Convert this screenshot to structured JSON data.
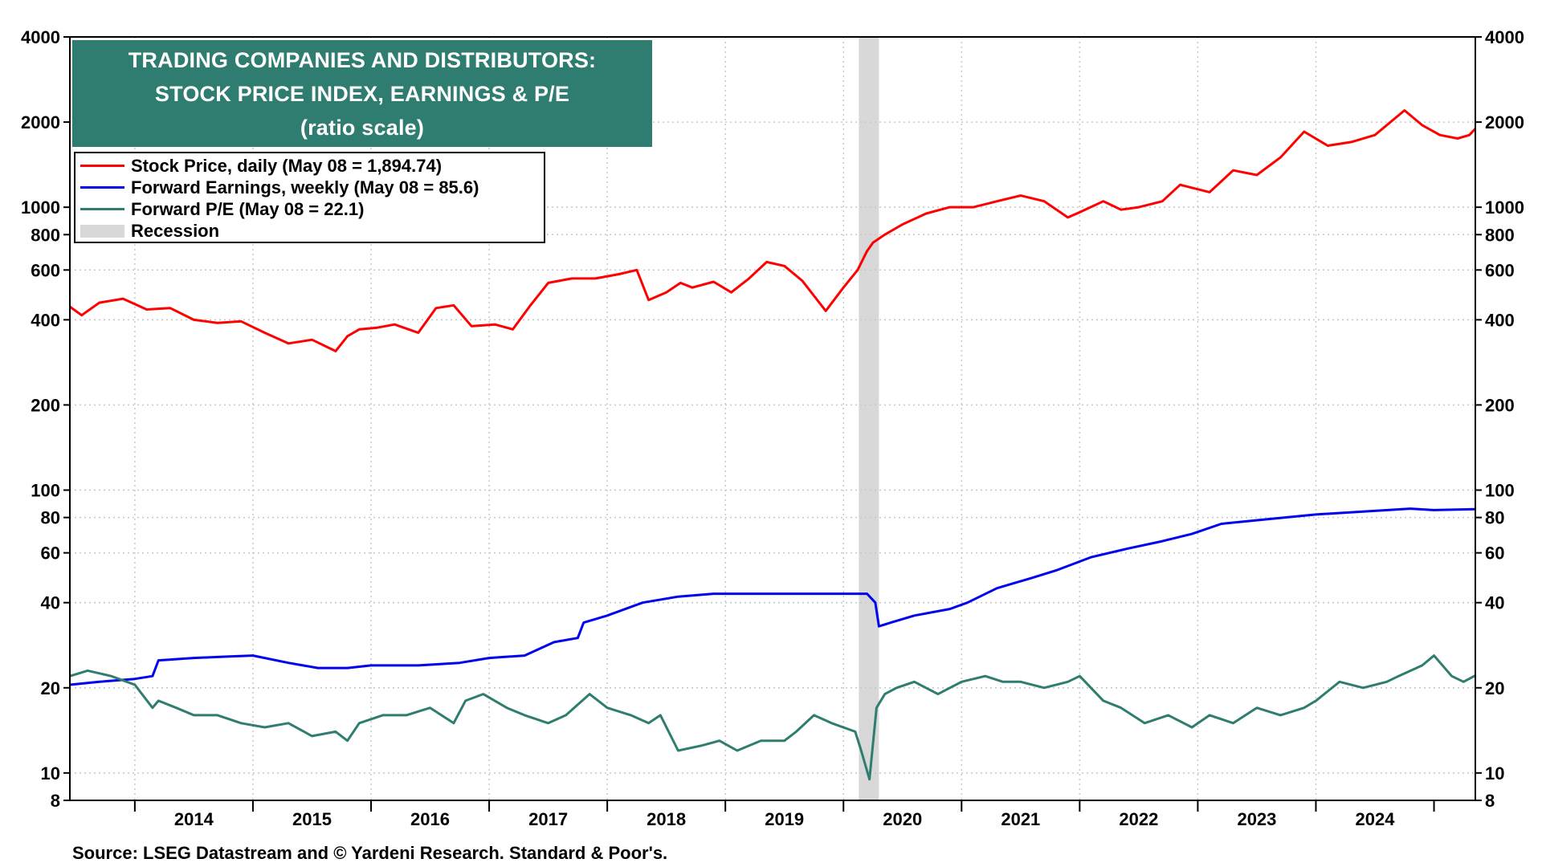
{
  "colors": {
    "price": "#ff0000",
    "earnings": "#0000ee",
    "pe": "#2e7d6e",
    "recession": "#d8d8d8",
    "title_bg": "#2e7d70",
    "grid": "#c8c8c8"
  },
  "chart_data": {
    "type": "line",
    "title": [
      "TRADING COMPANIES AND DISTRIBUTORS:",
      "STOCK PRICE INDEX, EARNINGS & P/E",
      "(ratio scale)"
    ],
    "y_scale": "log",
    "ylim": [
      8,
      4000
    ],
    "xlim": [
      2013.45,
      2025.35
    ],
    "y_ticks": [
      4000,
      2000,
      1000,
      800,
      600,
      400,
      200,
      100,
      80,
      60,
      40,
      20,
      10,
      8
    ],
    "x_year_labels": [
      "2014",
      "2015",
      "2016",
      "2017",
      "2018",
      "2019",
      "2020",
      "2021",
      "2022",
      "2023",
      "2024"
    ],
    "recession": [
      2020.13,
      2020.3
    ],
    "legend": [
      {
        "key": "price",
        "label": "Stock Price, daily (May 08 = 1,894.74)"
      },
      {
        "key": "earnings",
        "label": "Forward Earnings, weekly (May 08 = 85.6)"
      },
      {
        "key": "pe",
        "label": "Forward P/E (May 08 = 22.1)"
      },
      {
        "key": "recession",
        "label": "Recession"
      }
    ],
    "series": [
      {
        "name": "Stock Price, daily",
        "key": "price",
        "x": [
          2013.45,
          2013.55,
          2013.7,
          2013.9,
          2014.1,
          2014.3,
          2014.5,
          2014.7,
          2014.9,
          2015.1,
          2015.3,
          2015.5,
          2015.7,
          2015.8,
          2015.9,
          2016.05,
          2016.2,
          2016.4,
          2016.55,
          2016.7,
          2016.85,
          2017.05,
          2017.2,
          2017.35,
          2017.5,
          2017.7,
          2017.9,
          2018.1,
          2018.25,
          2018.35,
          2018.5,
          2018.62,
          2018.72,
          2018.9,
          2019.05,
          2019.2,
          2019.35,
          2019.5,
          2019.65,
          2019.85,
          2020.0,
          2020.12,
          2020.2,
          2020.25,
          2020.35,
          2020.5,
          2020.7,
          2020.9,
          2021.1,
          2021.3,
          2021.5,
          2021.7,
          2021.9,
          2022.0,
          2022.2,
          2022.35,
          2022.5,
          2022.7,
          2022.85,
          2023.1,
          2023.3,
          2023.5,
          2023.7,
          2023.9,
          2024.1,
          2024.3,
          2024.5,
          2024.75,
          2024.9,
          2025.05,
          2025.2,
          2025.3,
          2025.35
        ],
        "values": [
          445,
          415,
          460,
          475,
          435,
          440,
          400,
          390,
          395,
          360,
          330,
          340,
          310,
          350,
          370,
          375,
          385,
          360,
          440,
          450,
          380,
          385,
          370,
          450,
          540,
          560,
          560,
          580,
          600,
          470,
          500,
          540,
          520,
          545,
          500,
          560,
          640,
          620,
          550,
          430,
          520,
          600,
          700,
          750,
          800,
          870,
          950,
          1000,
          1000,
          1050,
          1100,
          1050,
          920,
          960,
          1050,
          980,
          1000,
          1050,
          1200,
          1130,
          1350,
          1300,
          1500,
          1850,
          1650,
          1700,
          1800,
          2200,
          1950,
          1800,
          1750,
          1800,
          1895
        ]
      },
      {
        "name": "Forward Earnings, weekly",
        "key": "earnings",
        "x": [
          2013.45,
          2013.7,
          2014.0,
          2014.15,
          2014.2,
          2014.5,
          2014.8,
          2015.0,
          2015.3,
          2015.55,
          2015.8,
          2016.0,
          2016.4,
          2016.75,
          2017.0,
          2017.3,
          2017.55,
          2017.75,
          2017.8,
          2018.0,
          2018.3,
          2018.6,
          2018.9,
          2019.2,
          2019.6,
          2020.0,
          2020.12,
          2020.2,
          2020.27,
          2020.3,
          2020.4,
          2020.6,
          2020.9,
          2021.05,
          2021.3,
          2021.6,
          2021.8,
          2022.1,
          2022.4,
          2022.7,
          2022.95,
          2023.2,
          2023.6,
          2024.0,
          2024.4,
          2024.8,
          2025.0,
          2025.35
        ],
        "values": [
          20.5,
          21,
          21.5,
          22,
          25,
          25.5,
          25.8,
          26,
          24.5,
          23.5,
          23.5,
          24,
          24,
          24.5,
          25.5,
          26,
          29,
          30,
          34,
          36,
          40,
          42,
          43,
          43,
          43,
          43,
          43,
          43,
          40,
          33,
          34,
          36,
          38,
          40,
          45,
          49,
          52,
          58,
          62,
          66,
          70,
          76,
          79,
          82,
          84,
          86,
          85,
          85.6
        ]
      },
      {
        "name": "Forward P/E",
        "key": "pe",
        "x": [
          2013.45,
          2013.6,
          2013.8,
          2014.0,
          2014.15,
          2014.2,
          2014.35,
          2014.5,
          2014.7,
          2014.9,
          2015.1,
          2015.3,
          2015.5,
          2015.7,
          2015.8,
          2015.9,
          2016.1,
          2016.3,
          2016.5,
          2016.7,
          2016.8,
          2016.95,
          2017.15,
          2017.3,
          2017.5,
          2017.65,
          2017.85,
          2018.0,
          2018.2,
          2018.35,
          2018.45,
          2018.6,
          2018.8,
          2018.95,
          2019.1,
          2019.3,
          2019.5,
          2019.6,
          2019.75,
          2019.9,
          2020.1,
          2020.15,
          2020.22,
          2020.28,
          2020.35,
          2020.45,
          2020.6,
          2020.8,
          2021.0,
          2021.2,
          2021.35,
          2021.5,
          2021.7,
          2021.9,
          2022.0,
          2022.2,
          2022.35,
          2022.55,
          2022.75,
          2022.95,
          2023.1,
          2023.3,
          2023.5,
          2023.7,
          2023.9,
          2024.0,
          2024.2,
          2024.4,
          2024.6,
          2024.7,
          2024.9,
          2025.0,
          2025.15,
          2025.25,
          2025.35
        ],
        "values": [
          22,
          23,
          22,
          20.5,
          17,
          18,
          17,
          16,
          16,
          15,
          14.5,
          15,
          13.5,
          14,
          13,
          15,
          16,
          16,
          17,
          15,
          18,
          19,
          17,
          16,
          15,
          16,
          19,
          17,
          16,
          15,
          16,
          12,
          12.5,
          13,
          12,
          13,
          13,
          14,
          16,
          15,
          14,
          12,
          9.5,
          17,
          19,
          20,
          21,
          19,
          21,
          22,
          21,
          21,
          20,
          21,
          22,
          18,
          17,
          15,
          16,
          14.5,
          16,
          15,
          17,
          16,
          17,
          18,
          21,
          20,
          21,
          22,
          24,
          26,
          22,
          21,
          22.1
        ]
      }
    ]
  },
  "footer": {
    "source": "Source: LSEG Datastream and © Yardeni Research. Standard & Poor's."
  }
}
